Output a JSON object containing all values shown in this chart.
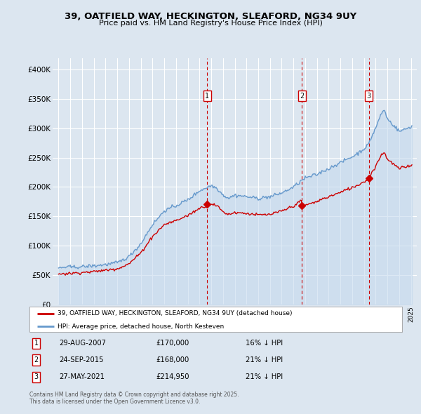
{
  "title1": "39, OATFIELD WAY, HECKINGTON, SLEAFORD, NG34 9UY",
  "title2": "Price paid vs. HM Land Registry's House Price Index (HPI)",
  "legend_red": "39, OATFIELD WAY, HECKINGTON, SLEAFORD, NG34 9UY (detached house)",
  "legend_blue": "HPI: Average price, detached house, North Kesteven",
  "annotations": [
    {
      "num": 1,
      "date": "29-AUG-2007",
      "price": "£170,000",
      "pct": "16% ↓ HPI",
      "year": 2007.66
    },
    {
      "num": 2,
      "date": "24-SEP-2015",
      "price": "£168,000",
      "pct": "21% ↓ HPI",
      "year": 2015.73
    },
    {
      "num": 3,
      "date": "27-MAY-2021",
      "price": "£214,950",
      "pct": "21% ↓ HPI",
      "year": 2021.41
    }
  ],
  "footer": "Contains HM Land Registry data © Crown copyright and database right 2025.\nThis data is licensed under the Open Government Licence v3.0.",
  "bg_color": "#dce6f0",
  "plot_bg": "#dce6f0",
  "grid_color": "#ffffff",
  "red_color": "#cc0000",
  "blue_color": "#6699cc",
  "blue_fill": "#c5d9ed",
  "ylim": [
    0,
    420000
  ],
  "yticks": [
    0,
    50000,
    100000,
    150000,
    200000,
    250000,
    300000,
    350000,
    400000
  ],
  "xlim_start": 1994.5,
  "xlim_end": 2025.5,
  "sales": [
    [
      1995.0,
      52000
    ],
    [
      2007.66,
      170000
    ],
    [
      2015.73,
      168000
    ],
    [
      2021.41,
      214950
    ]
  ],
  "hpi_anchors": [
    [
      1995.0,
      62000
    ],
    [
      1996.0,
      63000
    ],
    [
      1997.0,
      65000
    ],
    [
      1998.0,
      67000
    ],
    [
      1999.0,
      70000
    ],
    [
      2000.0,
      73000
    ],
    [
      2001.0,
      83000
    ],
    [
      2002.0,
      105000
    ],
    [
      2003.0,
      138000
    ],
    [
      2004.0,
      162000
    ],
    [
      2005.0,
      170000
    ],
    [
      2006.0,
      180000
    ],
    [
      2007.0,
      196000
    ],
    [
      2007.66,
      202000
    ],
    [
      2008.0,
      205000
    ],
    [
      2008.5,
      200000
    ],
    [
      2009.0,
      188000
    ],
    [
      2009.5,
      183000
    ],
    [
      2010.0,
      187000
    ],
    [
      2011.0,
      185000
    ],
    [
      2012.0,
      182000
    ],
    [
      2013.0,
      183000
    ],
    [
      2014.0,
      190000
    ],
    [
      2015.0,
      200000
    ],
    [
      2015.73,
      212000
    ],
    [
      2016.0,
      215000
    ],
    [
      2016.5,
      218000
    ],
    [
      2017.0,
      222000
    ],
    [
      2017.5,
      228000
    ],
    [
      2018.0,
      232000
    ],
    [
      2018.5,
      238000
    ],
    [
      2019.0,
      242000
    ],
    [
      2019.5,
      248000
    ],
    [
      2020.0,
      252000
    ],
    [
      2020.5,
      258000
    ],
    [
      2021.0,
      265000
    ],
    [
      2021.41,
      272000
    ],
    [
      2021.5,
      278000
    ],
    [
      2022.0,
      300000
    ],
    [
      2022.5,
      325000
    ],
    [
      2022.75,
      330000
    ],
    [
      2023.0,
      315000
    ],
    [
      2023.5,
      305000
    ],
    [
      2024.0,
      295000
    ],
    [
      2024.5,
      298000
    ],
    [
      2025.0,
      303000
    ]
  ]
}
